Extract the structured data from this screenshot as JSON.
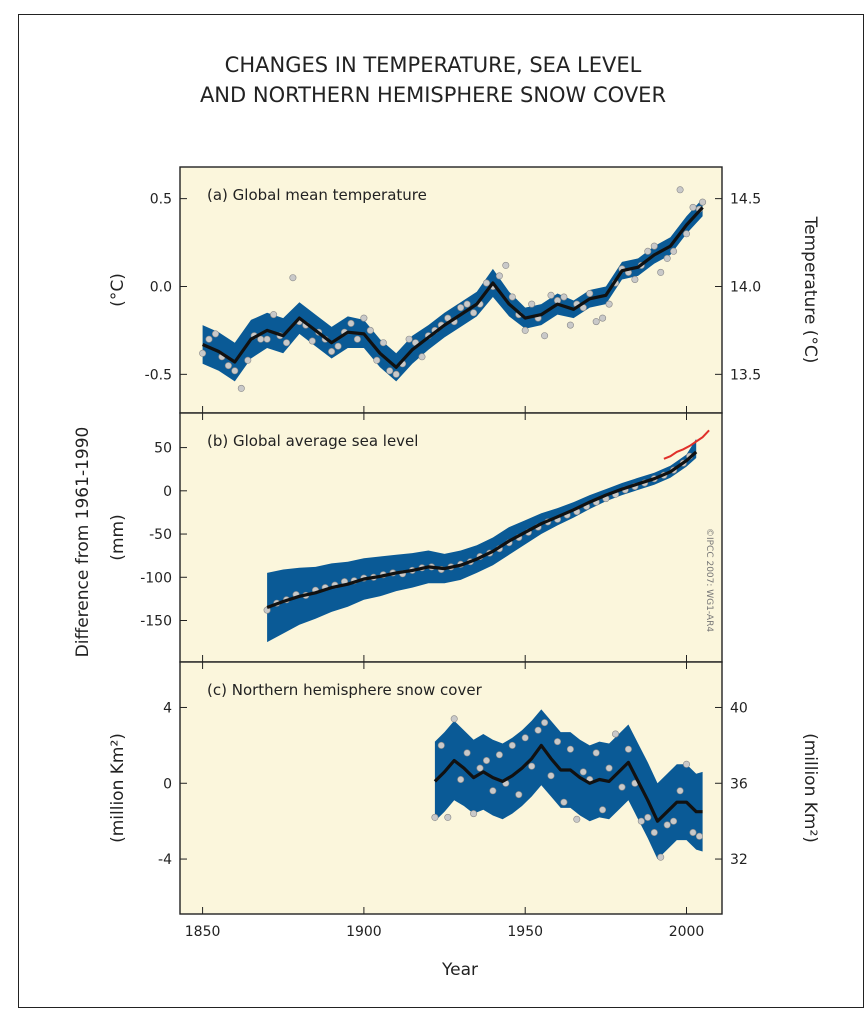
{
  "title_lines": [
    "CHANGES IN TEMPERATURE, SEA LEVEL",
    "AND NORTHERN HEMISPHERE SNOW COVER"
  ],
  "colors": {
    "panel_bg": "#fbf6dc",
    "band": "#0a5a96",
    "smooth": "#111111",
    "obs": "#c9c9c9",
    "satellite": "#e0302a"
  },
  "axes": {
    "xlabel": "Year",
    "ylabel_shared": "Difference from 1961-1990",
    "credit": "©IPCC 2007: WG1-AR4"
  },
  "chart_data": [
    {
      "type": "line",
      "id": "a",
      "panel_label": "(a) Global mean temperature",
      "ylabel_left": "(°C)",
      "ylabel_right": "Temperature (°C)",
      "xlim": [
        1843,
        2011
      ],
      "ylim": [
        -0.72,
        0.68
      ],
      "yticks": [
        -0.5,
        0.0,
        0.5
      ],
      "ytick_labels": [
        "-0.5",
        "0.0",
        "0.5"
      ],
      "right_ticks": [
        13.5,
        14.0,
        14.5
      ],
      "right_tick_labels": [
        "13.5",
        "14.0",
        "14.5"
      ],
      "right_offset": 14.0,
      "series": [
        {
          "role": "smoothed",
          "x": [
            1850,
            1855,
            1860,
            1865,
            1870,
            1875,
            1880,
            1885,
            1890,
            1895,
            1900,
            1905,
            1910,
            1915,
            1920,
            1925,
            1930,
            1935,
            1940,
            1945,
            1950,
            1955,
            1960,
            1965,
            1970,
            1975,
            1980,
            1985,
            1990,
            1995,
            2000,
            2005
          ],
          "y": [
            -0.33,
            -0.37,
            -0.43,
            -0.3,
            -0.25,
            -0.28,
            -0.18,
            -0.25,
            -0.32,
            -0.26,
            -0.27,
            -0.38,
            -0.46,
            -0.36,
            -0.29,
            -0.22,
            -0.16,
            -0.1,
            0.02,
            -0.1,
            -0.18,
            -0.16,
            -0.1,
            -0.13,
            -0.07,
            -0.05,
            0.09,
            0.11,
            0.18,
            0.23,
            0.35,
            0.45
          ]
        },
        {
          "role": "uncertainty",
          "lower": [
            -0.44,
            -0.48,
            -0.54,
            -0.41,
            -0.35,
            -0.38,
            -0.27,
            -0.34,
            -0.41,
            -0.35,
            -0.35,
            -0.46,
            -0.54,
            -0.44,
            -0.36,
            -0.29,
            -0.23,
            -0.17,
            -0.06,
            -0.17,
            -0.24,
            -0.22,
            -0.16,
            -0.18,
            -0.12,
            -0.1,
            0.04,
            0.06,
            0.13,
            0.18,
            0.3,
            0.4
          ],
          "upper": [
            -0.22,
            -0.26,
            -0.32,
            -0.19,
            -0.15,
            -0.18,
            -0.09,
            -0.16,
            -0.23,
            -0.17,
            -0.19,
            -0.3,
            -0.38,
            -0.28,
            -0.22,
            -0.15,
            -0.09,
            -0.03,
            0.1,
            -0.03,
            -0.12,
            -0.1,
            -0.04,
            -0.08,
            -0.02,
            0.0,
            0.14,
            0.16,
            0.23,
            0.28,
            0.4,
            0.5
          ]
        },
        {
          "role": "annual",
          "x": [
            1850,
            1852,
            1854,
            1856,
            1858,
            1860,
            1862,
            1864,
            1866,
            1868,
            1870,
            1872,
            1874,
            1876,
            1878,
            1880,
            1882,
            1884,
            1886,
            1888,
            1890,
            1892,
            1894,
            1896,
            1898,
            1900,
            1902,
            1904,
            1906,
            1908,
            1910,
            1912,
            1914,
            1916,
            1918,
            1920,
            1922,
            1924,
            1926,
            1928,
            1930,
            1932,
            1934,
            1936,
            1938,
            1940,
            1942,
            1944,
            1946,
            1948,
            1950,
            1952,
            1954,
            1956,
            1958,
            1960,
            1962,
            1964,
            1966,
            1968,
            1970,
            1972,
            1974,
            1976,
            1978,
            1980,
            1982,
            1984,
            1986,
            1988,
            1990,
            1992,
            1994,
            1996,
            1998,
            2000,
            2002,
            2004,
            2005
          ],
          "y": [
            -0.38,
            -0.3,
            -0.27,
            -0.4,
            -0.45,
            -0.48,
            -0.58,
            -0.42,
            -0.28,
            -0.3,
            -0.3,
            -0.16,
            -0.28,
            -0.32,
            0.05,
            -0.2,
            -0.22,
            -0.31,
            -0.26,
            -0.3,
            -0.37,
            -0.34,
            -0.26,
            -0.21,
            -0.3,
            -0.18,
            -0.25,
            -0.42,
            -0.32,
            -0.48,
            -0.5,
            -0.44,
            -0.3,
            -0.32,
            -0.4,
            -0.28,
            -0.25,
            -0.22,
            -0.18,
            -0.2,
            -0.12,
            -0.1,
            -0.15,
            -0.1,
            0.02,
            0.0,
            0.06,
            0.12,
            -0.06,
            -0.16,
            -0.25,
            -0.1,
            -0.18,
            -0.28,
            -0.05,
            -0.08,
            -0.06,
            -0.22,
            -0.1,
            -0.12,
            -0.04,
            -0.2,
            -0.18,
            -0.1,
            0.02,
            0.1,
            0.08,
            0.04,
            0.12,
            0.2,
            0.23,
            0.08,
            0.16,
            0.2,
            0.55,
            0.3,
            0.45,
            0.44,
            0.48
          ]
        }
      ]
    },
    {
      "type": "line",
      "id": "b",
      "panel_label": "(b) Global average sea level",
      "ylabel_left": "(mm)",
      "xlim": [
        1843,
        2011
      ],
      "ylim": [
        -198,
        90
      ],
      "yticks": [
        -150,
        -100,
        -50,
        0,
        50
      ],
      "ytick_labels": [
        "-150",
        "-100",
        "-50",
        "0",
        "50"
      ],
      "series": [
        {
          "role": "smoothed",
          "x": [
            1870,
            1875,
            1880,
            1885,
            1890,
            1895,
            1900,
            1905,
            1910,
            1915,
            1920,
            1925,
            1930,
            1935,
            1940,
            1945,
            1950,
            1955,
            1960,
            1965,
            1970,
            1975,
            1980,
            1985,
            1990,
            1995,
            2000,
            2003
          ],
          "y": [
            -135,
            -128,
            -122,
            -118,
            -112,
            -108,
            -102,
            -99,
            -95,
            -92,
            -88,
            -90,
            -86,
            -79,
            -70,
            -58,
            -48,
            -38,
            -30,
            -22,
            -13,
            -5,
            2,
            8,
            14,
            22,
            35,
            45
          ]
        },
        {
          "role": "uncertainty",
          "lower": [
            -175,
            -165,
            -155,
            -148,
            -140,
            -134,
            -126,
            -122,
            -116,
            -112,
            -107,
            -107,
            -103,
            -95,
            -86,
            -74,
            -62,
            -50,
            -40,
            -31,
            -21,
            -12,
            -5,
            1,
            7,
            15,
            28,
            38
          ],
          "upper": [
            -95,
            -91,
            -89,
            -88,
            -84,
            -82,
            -78,
            -76,
            -74,
            -72,
            -69,
            -73,
            -69,
            -63,
            -54,
            -42,
            -34,
            -26,
            -20,
            -13,
            -5,
            2,
            9,
            15,
            21,
            29,
            42,
            60
          ]
        },
        {
          "role": "satellite",
          "x": [
            1993,
            1995,
            1997,
            1999,
            2001,
            2003,
            2005,
            2007
          ],
          "y": [
            37,
            40,
            45,
            48,
            52,
            57,
            62,
            70
          ]
        },
        {
          "role": "annual",
          "x": [
            1870,
            1873,
            1876,
            1879,
            1882,
            1885,
            1888,
            1891,
            1894,
            1897,
            1900,
            1903,
            1906,
            1909,
            1912,
            1915,
            1918,
            1921,
            1924,
            1927,
            1930,
            1933,
            1936,
            1939,
            1942,
            1945,
            1948,
            1951,
            1954,
            1957,
            1960,
            1963,
            1966,
            1969,
            1972,
            1975,
            1978,
            1981,
            1984,
            1987,
            1990,
            1993,
            1996,
            1999,
            2001
          ],
          "y": [
            -138,
            -130,
            -126,
            -120,
            -121,
            -115,
            -112,
            -109,
            -105,
            -104,
            -101,
            -100,
            -97,
            -95,
            -96,
            -92,
            -89,
            -88,
            -91,
            -88,
            -85,
            -82,
            -76,
            -72,
            -67,
            -60,
            -54,
            -48,
            -42,
            -36,
            -33,
            -28,
            -24,
            -18,
            -13,
            -9,
            -4,
            1,
            5,
            9,
            14,
            18,
            24,
            32,
            40
          ]
        }
      ]
    },
    {
      "type": "line",
      "id": "c",
      "panel_label": "(c) Northern hemisphere snow cover",
      "ylabel_left": "(million Km²)",
      "ylabel_right": "(million Km²)",
      "xlim": [
        1843,
        2011
      ],
      "ylim": [
        -6.9,
        6.4
      ],
      "yticks": [
        -4,
        0,
        4
      ],
      "ytick_labels": [
        "-4",
        "0",
        "4"
      ],
      "right_ticks": [
        32,
        36,
        40
      ],
      "right_tick_labels": [
        "32",
        "36",
        "40"
      ],
      "right_offset": 36,
      "series": [
        {
          "role": "smoothed",
          "x": [
            1922,
            1925,
            1928,
            1931,
            1934,
            1937,
            1940,
            1943,
            1946,
            1949,
            1952,
            1955,
            1958,
            1961,
            1964,
            1967,
            1970,
            1973,
            1976,
            1979,
            1982,
            1985,
            1988,
            1991,
            1994,
            1997,
            2000,
            2003,
            2005
          ],
          "y": [
            0.1,
            0.6,
            1.2,
            0.8,
            0.3,
            0.6,
            0.3,
            0.1,
            0.4,
            0.8,
            1.3,
            2.0,
            1.3,
            0.7,
            0.7,
            0.3,
            0.0,
            0.2,
            0.1,
            0.6,
            1.1,
            0.1,
            -0.9,
            -2.0,
            -1.5,
            -1.0,
            -1.0,
            -1.5,
            -1.5
          ]
        },
        {
          "role": "uncertainty",
          "lower": [
            -2.0,
            -1.5,
            -0.9,
            -1.2,
            -1.6,
            -1.4,
            -1.7,
            -1.9,
            -1.6,
            -1.2,
            -0.7,
            -0.1,
            -0.7,
            -1.3,
            -1.3,
            -1.7,
            -2.0,
            -1.8,
            -1.9,
            -1.4,
            -0.9,
            -1.9,
            -2.9,
            -4.0,
            -3.5,
            -3.0,
            -3.0,
            -3.5,
            -3.6
          ],
          "upper": [
            2.2,
            2.7,
            3.3,
            2.8,
            2.3,
            2.6,
            2.3,
            2.1,
            2.4,
            2.8,
            3.3,
            3.9,
            3.3,
            2.7,
            2.7,
            2.3,
            2.0,
            2.2,
            2.1,
            2.6,
            3.1,
            2.1,
            1.1,
            0.0,
            0.5,
            1.0,
            1.0,
            0.5,
            0.6
          ]
        },
        {
          "role": "annual",
          "x": [
            1922,
            1924,
            1926,
            1928,
            1930,
            1932,
            1934,
            1936,
            1938,
            1940,
            1942,
            1944,
            1946,
            1948,
            1950,
            1952,
            1954,
            1956,
            1958,
            1960,
            1962,
            1964,
            1966,
            1968,
            1970,
            1972,
            1974,
            1976,
            1978,
            1980,
            1982,
            1984,
            1986,
            1988,
            1990,
            1992,
            1994,
            1996,
            1998,
            2000,
            2002,
            2004
          ],
          "y": [
            -1.8,
            2.0,
            -1.8,
            3.4,
            0.2,
            1.6,
            -1.6,
            0.8,
            1.2,
            -0.4,
            1.5,
            0.0,
            2.0,
            -0.6,
            2.4,
            0.9,
            2.8,
            3.2,
            0.4,
            2.2,
            -1.0,
            1.8,
            -1.9,
            0.6,
            0.2,
            1.6,
            -1.4,
            0.8,
            2.6,
            -0.2,
            1.8,
            0.0,
            -2.0,
            -1.8,
            -2.6,
            -3.9,
            -2.2,
            -2.0,
            -0.4,
            1.0,
            -2.6,
            -2.8
          ]
        }
      ]
    }
  ],
  "x_axis": {
    "ticks": [
      1850,
      1900,
      1950,
      2000
    ],
    "tick_labels": [
      "1850",
      "1900",
      "1950",
      "2000"
    ]
  }
}
